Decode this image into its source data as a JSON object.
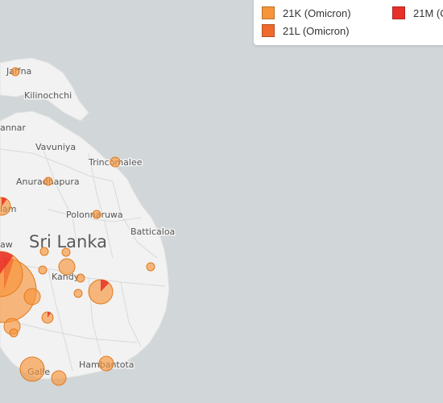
{
  "legend": {
    "items": [
      {
        "label": "21K (Omicron)",
        "color": "#f7953a"
      },
      {
        "label": "21L (Omicron)",
        "color": "#f06a2b"
      },
      {
        "label": "21M (O",
        "color": "#e8302b"
      }
    ]
  },
  "places": {
    "jaffna": "Jaffna",
    "kilinochchi": "Kilinochchi",
    "mannar": "annar",
    "vavuniya": "Vavuniya",
    "trincomalee": "Trincomalee",
    "anuradhapura": "Anuradhapura",
    "puttalam": "lam",
    "polonnaruwa": "Polonnaruwa",
    "batticaloa": "Batticaloa",
    "country": "Sri Lanka",
    "colombo": "aw",
    "kandy": "Kandy",
    "galle": "Galle",
    "hambantota": "Hambantota"
  },
  "colors": {
    "water": "#d1d6d8",
    "land": "#f2f2f2",
    "circle_fill": "#f7953a",
    "circle_stroke": "#e07a1f",
    "wedge": "#e8302b"
  }
}
